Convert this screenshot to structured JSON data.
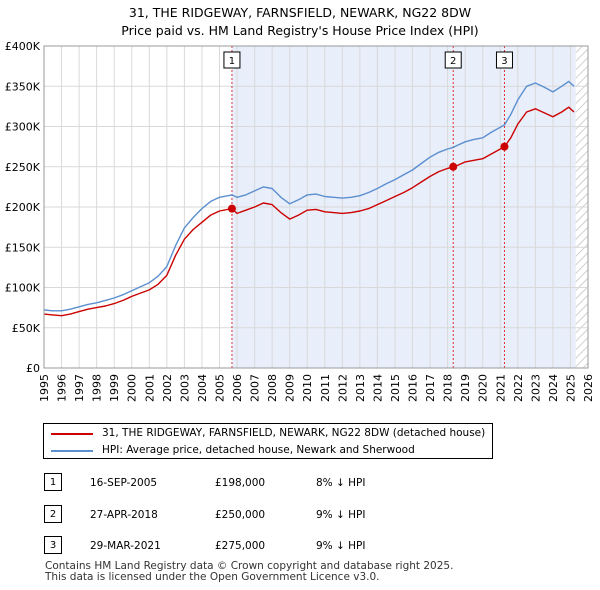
{
  "chart_data": {
    "type": "line",
    "title_line1": "31, THE RIDGEWAY, FARNSFIELD, NEWARK, NG22 8DW",
    "title_line2": "Price paid vs. HM Land Registry's House Price Index (HPI)",
    "xlim": [
      1995,
      2026
    ],
    "ylim": [
      0,
      400000
    ],
    "x_ticks": [
      "1995",
      "1996",
      "1997",
      "1998",
      "1999",
      "2000",
      "2001",
      "2002",
      "2003",
      "2004",
      "2005",
      "2006",
      "2007",
      "2008",
      "2009",
      "2010",
      "2011",
      "2012",
      "2013",
      "2014",
      "2015",
      "2016",
      "2017",
      "2018",
      "2019",
      "2020",
      "2021",
      "2022",
      "2023",
      "2024",
      "2025",
      "2026"
    ],
    "y_ticks": [
      {
        "value": 0,
        "label": "£0"
      },
      {
        "value": 50000,
        "label": "£50K"
      },
      {
        "value": 100000,
        "label": "£100K"
      },
      {
        "value": 150000,
        "label": "£150K"
      },
      {
        "value": 200000,
        "label": "£200K"
      },
      {
        "value": 250000,
        "label": "£250K"
      },
      {
        "value": 300000,
        "label": "£300K"
      },
      {
        "value": 350000,
        "label": "£350K"
      },
      {
        "value": 400000,
        "label": "£400K"
      }
    ],
    "shaded_range": [
      2005.71,
      2025.3
    ],
    "hatched_range": [
      2025.3,
      2026
    ],
    "colors": {
      "property": "#cc0000",
      "hpi": "#5b8fd0",
      "shade": "#e8eefa",
      "marker_line": "#e03030"
    },
    "series": [
      {
        "name": "31, THE RIDGEWAY, FARNSFIELD, NEWARK, NG22 8DW (detached house)",
        "color": "#cc0000",
        "points": [
          [
            1995.0,
            67000
          ],
          [
            1995.5,
            66000
          ],
          [
            1996.0,
            65000
          ],
          [
            1996.5,
            67000
          ],
          [
            1997.0,
            70000
          ],
          [
            1997.5,
            73000
          ],
          [
            1998.0,
            75000
          ],
          [
            1998.5,
            77000
          ],
          [
            1999.0,
            80000
          ],
          [
            1999.5,
            84000
          ],
          [
            2000.0,
            89000
          ],
          [
            2000.5,
            93000
          ],
          [
            2001.0,
            97000
          ],
          [
            2001.5,
            104000
          ],
          [
            2002.0,
            115000
          ],
          [
            2002.5,
            140000
          ],
          [
            2003.0,
            160000
          ],
          [
            2003.5,
            172000
          ],
          [
            2004.0,
            181000
          ],
          [
            2004.5,
            190000
          ],
          [
            2005.0,
            195000
          ],
          [
            2005.71,
            198000
          ],
          [
            2006.0,
            192000
          ],
          [
            2006.5,
            196000
          ],
          [
            2007.0,
            200000
          ],
          [
            2007.5,
            205000
          ],
          [
            2008.0,
            203000
          ],
          [
            2008.5,
            193000
          ],
          [
            2009.0,
            185000
          ],
          [
            2009.5,
            190000
          ],
          [
            2010.0,
            196000
          ],
          [
            2010.5,
            197000
          ],
          [
            2011.0,
            194000
          ],
          [
            2011.5,
            193000
          ],
          [
            2012.0,
            192000
          ],
          [
            2012.5,
            193000
          ],
          [
            2013.0,
            195000
          ],
          [
            2013.5,
            198000
          ],
          [
            2014.0,
            203000
          ],
          [
            2014.5,
            208000
          ],
          [
            2015.0,
            213000
          ],
          [
            2015.5,
            218000
          ],
          [
            2016.0,
            224000
          ],
          [
            2016.5,
            231000
          ],
          [
            2017.0,
            238000
          ],
          [
            2017.5,
            244000
          ],
          [
            2018.0,
            248000
          ],
          [
            2018.32,
            250000
          ],
          [
            2018.6,
            252000
          ],
          [
            2019.0,
            256000
          ],
          [
            2019.5,
            258000
          ],
          [
            2020.0,
            260000
          ],
          [
            2020.5,
            266000
          ],
          [
            2021.0,
            272000
          ],
          [
            2021.24,
            275000
          ],
          [
            2021.6,
            286000
          ],
          [
            2022.0,
            303000
          ],
          [
            2022.5,
            318000
          ],
          [
            2023.0,
            322000
          ],
          [
            2023.5,
            317000
          ],
          [
            2024.0,
            312000
          ],
          [
            2024.5,
            318000
          ],
          [
            2024.9,
            324000
          ],
          [
            2025.2,
            318000
          ]
        ]
      },
      {
        "name": "HPI: Average price, detached house, Newark and Sherwood",
        "color": "#5b8fd0",
        "points": [
          [
            1995.0,
            72000
          ],
          [
            1995.5,
            71000
          ],
          [
            1996.0,
            71000
          ],
          [
            1996.5,
            73000
          ],
          [
            1997.0,
            76000
          ],
          [
            1997.5,
            79000
          ],
          [
            1998.0,
            81000
          ],
          [
            1998.5,
            84000
          ],
          [
            1999.0,
            87000
          ],
          [
            1999.5,
            91000
          ],
          [
            2000.0,
            96000
          ],
          [
            2000.5,
            101000
          ],
          [
            2001.0,
            106000
          ],
          [
            2001.5,
            114000
          ],
          [
            2002.0,
            126000
          ],
          [
            2002.5,
            152000
          ],
          [
            2003.0,
            174000
          ],
          [
            2003.5,
            187000
          ],
          [
            2004.0,
            198000
          ],
          [
            2004.5,
            207000
          ],
          [
            2005.0,
            212000
          ],
          [
            2005.71,
            215000
          ],
          [
            2006.0,
            212000
          ],
          [
            2006.5,
            215000
          ],
          [
            2007.0,
            220000
          ],
          [
            2007.5,
            225000
          ],
          [
            2008.0,
            223000
          ],
          [
            2008.5,
            212000
          ],
          [
            2009.0,
            204000
          ],
          [
            2009.5,
            209000
          ],
          [
            2010.0,
            215000
          ],
          [
            2010.5,
            216000
          ],
          [
            2011.0,
            213000
          ],
          [
            2011.5,
            212000
          ],
          [
            2012.0,
            211000
          ],
          [
            2012.5,
            212000
          ],
          [
            2013.0,
            214000
          ],
          [
            2013.5,
            218000
          ],
          [
            2014.0,
            223000
          ],
          [
            2014.5,
            229000
          ],
          [
            2015.0,
            234000
          ],
          [
            2015.5,
            240000
          ],
          [
            2016.0,
            246000
          ],
          [
            2016.5,
            254000
          ],
          [
            2017.0,
            262000
          ],
          [
            2017.5,
            268000
          ],
          [
            2018.0,
            272000
          ],
          [
            2018.32,
            274000
          ],
          [
            2018.6,
            277000
          ],
          [
            2019.0,
            281000
          ],
          [
            2019.5,
            284000
          ],
          [
            2020.0,
            286000
          ],
          [
            2020.5,
            293000
          ],
          [
            2021.0,
            299000
          ],
          [
            2021.24,
            302000
          ],
          [
            2021.6,
            315000
          ],
          [
            2022.0,
            333000
          ],
          [
            2022.5,
            350000
          ],
          [
            2023.0,
            354000
          ],
          [
            2023.5,
            349000
          ],
          [
            2024.0,
            343000
          ],
          [
            2024.5,
            350000
          ],
          [
            2024.9,
            356000
          ],
          [
            2025.2,
            350000
          ]
        ]
      }
    ],
    "sales": [
      {
        "id": "1",
        "x": 2005.71,
        "price": 198000,
        "date": "16-SEP-2005",
        "price_label": "£198,000",
        "hpi_label": "8% ↓ HPI"
      },
      {
        "id": "2",
        "x": 2018.32,
        "price": 250000,
        "date": "27-APR-2018",
        "price_label": "£250,000",
        "hpi_label": "9% ↓ HPI"
      },
      {
        "id": "3",
        "x": 2021.24,
        "price": 275000,
        "date": "29-MAR-2021",
        "price_label": "£275,000",
        "hpi_label": "9% ↓ HPI"
      }
    ],
    "legend": {
      "property_label": "31, THE RIDGEWAY, FARNSFIELD, NEWARK, NG22 8DW (detached house)",
      "hpi_label": "HPI: Average price, detached house, Newark and Sherwood"
    }
  },
  "footer": {
    "line1": "Contains HM Land Registry data © Crown copyright and database right 2025.",
    "line2": "This data is licensed under the Open Government Licence v3.0."
  }
}
